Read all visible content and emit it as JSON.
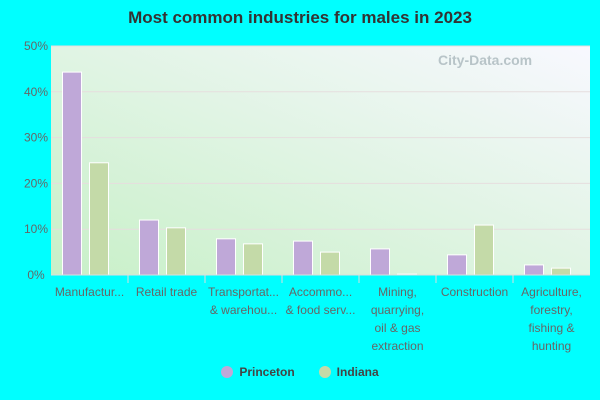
{
  "chart_data": {
    "type": "bar",
    "title": "Most common industries for males in 2023",
    "categories": [
      [
        "Manufactur..."
      ],
      [
        "Retail trade"
      ],
      [
        "Transportat...",
        "& warehou..."
      ],
      [
        "Accommo...",
        "& food serv..."
      ],
      [
        "Mining,",
        "quarrying,",
        "oil & gas",
        "extraction"
      ],
      [
        "Construction"
      ],
      [
        "Agriculture,",
        "forestry,",
        "fishing &",
        "hunting"
      ]
    ],
    "series": [
      {
        "name": "Princeton",
        "color": "#bfa8d8",
        "values": [
          44.3,
          12.0,
          7.9,
          7.4,
          5.7,
          4.4,
          2.2
        ]
      },
      {
        "name": "Indiana",
        "color": "#c4daa8",
        "values": [
          24.5,
          10.3,
          6.8,
          5.0,
          0.2,
          10.9,
          1.5
        ]
      }
    ],
    "ylim": [
      0,
      50
    ],
    "yticks": [
      "0%",
      "10%",
      "20%",
      "30%",
      "40%",
      "50%"
    ],
    "grid": true,
    "legend": "bottom"
  },
  "watermark": "City-Data.com"
}
